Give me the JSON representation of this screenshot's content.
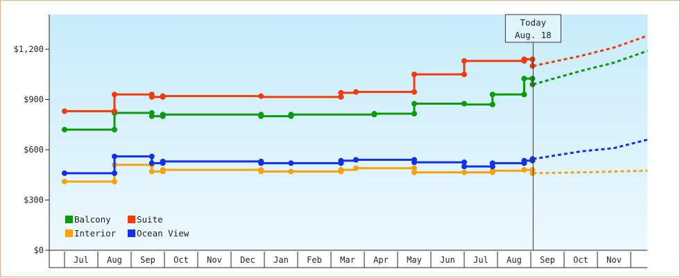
{
  "chart_data": {
    "type": "line",
    "y_ticks": [
      "$0",
      "$300",
      "$600",
      "$900",
      "$1,200"
    ],
    "ylim": [
      0,
      1400
    ],
    "months": [
      "Jul",
      "Aug",
      "Sep",
      "Oct",
      "Nov",
      "Dec",
      "Jan",
      "Feb",
      "Mar",
      "Apr",
      "May",
      "Jun",
      "Jul",
      "Aug",
      "Sep",
      "Oct",
      "Nov"
    ],
    "today_marker": {
      "line1": "Today",
      "line2": "Aug. 18",
      "month_index": 13.57
    },
    "grid": false,
    "legend_position": "bottom-left",
    "series": [
      {
        "name": "Balcony",
        "color": "#0a9a0a",
        "points": [
          [
            -0.5,
            720
          ],
          [
            1.0,
            720
          ],
          [
            1.0,
            820
          ],
          [
            2.12,
            820
          ],
          [
            2.12,
            800
          ],
          [
            2.45,
            800
          ],
          [
            2.45,
            810
          ],
          [
            5.4,
            810
          ],
          [
            5.4,
            800
          ],
          [
            6.3,
            800
          ],
          [
            6.3,
            810
          ],
          [
            8.8,
            810
          ],
          [
            8.8,
            815
          ],
          [
            10.0,
            815
          ],
          [
            10.0,
            875
          ],
          [
            11.5,
            875
          ],
          [
            11.5,
            870
          ],
          [
            12.35,
            870
          ],
          [
            12.35,
            930
          ],
          [
            13.3,
            930
          ],
          [
            13.3,
            1025
          ],
          [
            13.55,
            1025
          ],
          [
            13.55,
            990
          ]
        ],
        "markers": [
          [
            -0.5,
            720
          ],
          [
            1.0,
            720
          ],
          [
            1.0,
            820
          ],
          [
            2.12,
            820
          ],
          [
            2.12,
            800
          ],
          [
            2.45,
            800
          ],
          [
            2.45,
            810
          ],
          [
            5.4,
            810
          ],
          [
            5.4,
            800
          ],
          [
            6.3,
            800
          ],
          [
            6.3,
            810
          ],
          [
            8.8,
            810
          ],
          [
            8.8,
            815
          ],
          [
            10.0,
            815
          ],
          [
            10.0,
            875
          ],
          [
            11.5,
            875
          ],
          [
            12.35,
            870
          ],
          [
            12.35,
            930
          ],
          [
            13.3,
            930
          ],
          [
            13.3,
            1025
          ],
          [
            13.55,
            1025
          ],
          [
            13.55,
            990
          ]
        ],
        "forecast": [
          [
            13.57,
            990
          ],
          [
            15.0,
            1070
          ],
          [
            16.0,
            1120
          ],
          [
            17.0,
            1190
          ]
        ]
      },
      {
        "name": "Suite",
        "color": "#f23a0a",
        "points": [
          [
            -0.5,
            830
          ],
          [
            1.0,
            830
          ],
          [
            1.0,
            930
          ],
          [
            2.12,
            930
          ],
          [
            2.12,
            915
          ],
          [
            2.45,
            915
          ],
          [
            2.45,
            920
          ],
          [
            5.4,
            920
          ],
          [
            5.4,
            915
          ],
          [
            7.8,
            915
          ],
          [
            7.8,
            940
          ],
          [
            8.25,
            940
          ],
          [
            8.25,
            945
          ],
          [
            10.0,
            945
          ],
          [
            10.0,
            1050
          ],
          [
            11.5,
            1050
          ],
          [
            11.5,
            1130
          ],
          [
            13.3,
            1130
          ],
          [
            13.3,
            1140
          ],
          [
            13.55,
            1140
          ],
          [
            13.55,
            1100
          ]
        ],
        "markers": [
          [
            -0.5,
            830
          ],
          [
            1.0,
            830
          ],
          [
            1.0,
            930
          ],
          [
            2.12,
            930
          ],
          [
            2.12,
            915
          ],
          [
            2.45,
            915
          ],
          [
            2.45,
            920
          ],
          [
            5.4,
            920
          ],
          [
            7.8,
            915
          ],
          [
            7.8,
            940
          ],
          [
            8.25,
            945
          ],
          [
            10.0,
            945
          ],
          [
            10.0,
            1050
          ],
          [
            11.5,
            1050
          ],
          [
            11.5,
            1130
          ],
          [
            13.3,
            1130
          ],
          [
            13.3,
            1140
          ],
          [
            13.55,
            1140
          ],
          [
            13.55,
            1100
          ]
        ],
        "forecast": [
          [
            13.57,
            1100
          ],
          [
            15.0,
            1160
          ],
          [
            16.0,
            1210
          ],
          [
            17.0,
            1280
          ]
        ]
      },
      {
        "name": "Interior",
        "color": "#f5a20c",
        "points": [
          [
            -0.5,
            410
          ],
          [
            1.0,
            410
          ],
          [
            1.0,
            510
          ],
          [
            2.12,
            510
          ],
          [
            2.12,
            470
          ],
          [
            2.45,
            470
          ],
          [
            2.45,
            480
          ],
          [
            5.4,
            480
          ],
          [
            5.4,
            470
          ],
          [
            7.8,
            470
          ],
          [
            7.8,
            480
          ],
          [
            8.25,
            480
          ],
          [
            8.25,
            490
          ],
          [
            10.0,
            490
          ],
          [
            10.0,
            465
          ],
          [
            11.5,
            465
          ],
          [
            11.5,
            465
          ],
          [
            12.35,
            465
          ],
          [
            12.35,
            475
          ],
          [
            13.3,
            475
          ],
          [
            13.3,
            480
          ],
          [
            13.55,
            480
          ],
          [
            13.55,
            460
          ]
        ],
        "markers": [
          [
            -0.5,
            410
          ],
          [
            1.0,
            410
          ],
          [
            1.0,
            510
          ],
          [
            2.12,
            510
          ],
          [
            2.12,
            470
          ],
          [
            2.45,
            470
          ],
          [
            2.45,
            480
          ],
          [
            5.4,
            480
          ],
          [
            5.4,
            470
          ],
          [
            6.3,
            470
          ],
          [
            7.8,
            470
          ],
          [
            7.8,
            480
          ],
          [
            8.25,
            490
          ],
          [
            10.0,
            490
          ],
          [
            10.0,
            465
          ],
          [
            11.5,
            465
          ],
          [
            12.35,
            465
          ],
          [
            12.35,
            475
          ],
          [
            13.3,
            480
          ],
          [
            13.55,
            480
          ],
          [
            13.55,
            460
          ]
        ],
        "forecast": [
          [
            13.57,
            460
          ],
          [
            15.0,
            465
          ],
          [
            16.0,
            470
          ],
          [
            17.0,
            475
          ]
        ]
      },
      {
        "name": "Ocean View",
        "color": "#1030f0",
        "points": [
          [
            -0.5,
            460
          ],
          [
            1.0,
            460
          ],
          [
            1.0,
            560
          ],
          [
            2.12,
            560
          ],
          [
            2.12,
            520
          ],
          [
            2.45,
            520
          ],
          [
            2.45,
            530
          ],
          [
            5.4,
            530
          ],
          [
            5.4,
            520
          ],
          [
            7.8,
            520
          ],
          [
            7.8,
            535
          ],
          [
            8.25,
            535
          ],
          [
            8.25,
            540
          ],
          [
            10.0,
            540
          ],
          [
            10.0,
            525
          ],
          [
            11.5,
            525
          ],
          [
            11.5,
            500
          ],
          [
            12.35,
            500
          ],
          [
            12.35,
            520
          ],
          [
            13.3,
            520
          ],
          [
            13.3,
            535
          ],
          [
            13.55,
            535
          ],
          [
            13.55,
            545
          ]
        ],
        "markers": [
          [
            -0.5,
            460
          ],
          [
            1.0,
            460
          ],
          [
            1.0,
            560
          ],
          [
            2.12,
            560
          ],
          [
            2.12,
            520
          ],
          [
            2.45,
            520
          ],
          [
            2.45,
            530
          ],
          [
            5.4,
            530
          ],
          [
            5.4,
            520
          ],
          [
            6.3,
            520
          ],
          [
            7.8,
            520
          ],
          [
            7.8,
            535
          ],
          [
            8.25,
            540
          ],
          [
            10.0,
            540
          ],
          [
            10.0,
            525
          ],
          [
            11.5,
            525
          ],
          [
            11.5,
            500
          ],
          [
            12.35,
            500
          ],
          [
            12.35,
            520
          ],
          [
            13.3,
            520
          ],
          [
            13.3,
            535
          ],
          [
            13.55,
            535
          ],
          [
            13.55,
            545
          ]
        ],
        "forecast": [
          [
            13.57,
            545
          ],
          [
            15.0,
            590
          ],
          [
            16.0,
            610
          ],
          [
            17.0,
            660
          ]
        ]
      }
    ]
  }
}
